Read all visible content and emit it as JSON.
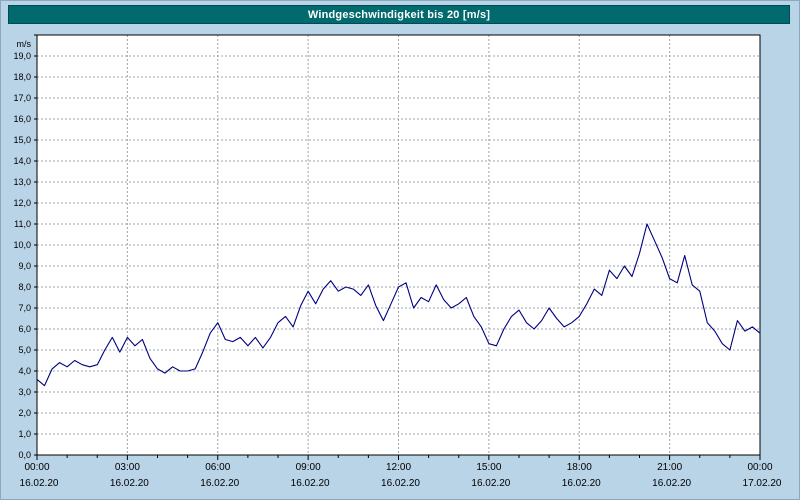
{
  "title": "Windgeschwindigkeit bis 20 [m/s]",
  "colors": {
    "background": "#b9d3e7",
    "title_bar": "#016a6e",
    "title_text": "#ffffff",
    "plot_background": "#ffffff",
    "gridline": "#9ba5ad",
    "axis": "#000000",
    "line": "#000080"
  },
  "y_axis": {
    "unit_label": "m/s",
    "min": 0,
    "max": 20,
    "tick_step": 1,
    "tick_labels": [
      "19,0",
      "18,0",
      "17,0",
      "16,0",
      "15,0",
      "14,0",
      "13,0",
      "12,0",
      "11,0",
      "10,0",
      "9,0",
      "8,0",
      "7,0",
      "6,0",
      "5,0",
      "4,0",
      "3,0",
      "2,0",
      "1,0",
      "0,0"
    ]
  },
  "x_axis": {
    "tick_interval_hours": 3,
    "ticks": [
      {
        "time": "00:00",
        "date": "16.02.20"
      },
      {
        "time": "03:00",
        "date": "16.02.20"
      },
      {
        "time": "06:00",
        "date": "16.02.20"
      },
      {
        "time": "09:00",
        "date": "16.02.20"
      },
      {
        "time": "12:00",
        "date": "16.02.20"
      },
      {
        "time": "15:00",
        "date": "16.02.20"
      },
      {
        "time": "18:00",
        "date": "16.02.20"
      },
      {
        "time": "21:00",
        "date": "16.02.20"
      },
      {
        "time": "00:00",
        "date": "17.02.20"
      }
    ]
  },
  "chart_data": {
    "type": "line",
    "title": "Windgeschwindigkeit bis 20 [m/s]",
    "xlabel": "",
    "ylabel": "m/s",
    "ylim": [
      0,
      20
    ],
    "x_range_hours": [
      0,
      24
    ],
    "x_start_hour": 0,
    "x_step_hours": 0.25,
    "grid": true,
    "legend": false,
    "series": [
      {
        "name": "Windgeschwindigkeit",
        "color": "#000080",
        "values": [
          3.6,
          3.3,
          4.1,
          4.4,
          4.2,
          4.5,
          4.3,
          4.2,
          4.3,
          5.0,
          5.6,
          4.9,
          5.6,
          5.2,
          5.5,
          4.6,
          4.1,
          3.9,
          4.2,
          4.0,
          4.0,
          4.1,
          4.9,
          5.8,
          6.3,
          5.5,
          5.4,
          5.6,
          5.2,
          5.6,
          5.1,
          5.6,
          6.3,
          6.6,
          6.1,
          7.1,
          7.8,
          7.2,
          7.9,
          8.3,
          7.8,
          8.0,
          7.9,
          7.6,
          8.1,
          7.1,
          6.4,
          7.2,
          8.0,
          8.2,
          7.0,
          7.5,
          7.3,
          8.1,
          7.4,
          7.0,
          7.2,
          7.5,
          6.6,
          6.1,
          5.3,
          5.2,
          6.0,
          6.6,
          6.9,
          6.3,
          6.0,
          6.4,
          7.0,
          6.5,
          6.1,
          6.3,
          6.6,
          7.2,
          7.9,
          7.6,
          8.8,
          8.4,
          9.0,
          8.5,
          9.6,
          11.0,
          10.2,
          9.4,
          8.4,
          8.2,
          9.5,
          8.1,
          7.8,
          6.3,
          5.9,
          5.3,
          5.0,
          6.4,
          5.9,
          6.1,
          5.8
        ]
      }
    ]
  }
}
